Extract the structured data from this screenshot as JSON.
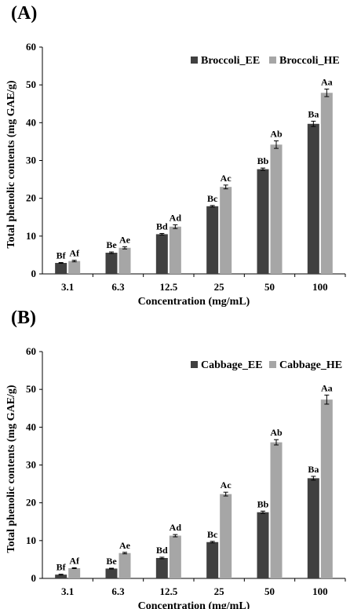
{
  "chart_data": [
    {
      "type": "bar",
      "panel_label": "(A)",
      "categories": [
        "3.1",
        "6.3",
        "12.5",
        "25",
        "50",
        "100"
      ],
      "series": [
        {
          "name": "Broccoli_EE",
          "color": "#404040",
          "values": [
            2.9,
            5.6,
            10.5,
            17.9,
            27.7,
            39.7
          ],
          "errors": [
            0.1,
            0.2,
            0.2,
            0.2,
            0.3,
            0.7
          ],
          "labels": [
            "Bf",
            "Be",
            "Bd",
            "Bc",
            "Bb",
            "Ba"
          ]
        },
        {
          "name": "Broccoli_HE",
          "color": "#a6a6a6",
          "values": [
            3.4,
            6.9,
            12.5,
            23.0,
            34.2,
            47.9
          ],
          "errors": [
            0.2,
            0.3,
            0.5,
            0.5,
            1.0,
            1.0
          ],
          "labels": [
            "Af",
            "Ae",
            "Ad",
            "Ac",
            "Ab",
            "Aa"
          ]
        }
      ],
      "xlabel": "Concentration (mg/mL)",
      "ylabel": "Total phenolic contents (mg GAE/g)",
      "ylim": [
        0,
        60
      ],
      "yticks": [
        "0",
        "10",
        "20",
        "30",
        "40",
        "50",
        "60"
      ],
      "legend": "top-right",
      "grid": false
    },
    {
      "type": "bar",
      "panel_label": "(B)",
      "categories": [
        "3.1",
        "6.3",
        "12.5",
        "25",
        "50",
        "100"
      ],
      "series": [
        {
          "name": "Cabbage_EE",
          "color": "#404040",
          "values": [
            1.0,
            2.6,
            5.4,
            9.6,
            17.5,
            26.5
          ],
          "errors": [
            0.1,
            0.1,
            0.2,
            0.2,
            0.3,
            0.5
          ],
          "labels": [
            "Bf",
            "Be",
            "Bd",
            "Bc",
            "Bb",
            "Ba"
          ]
        },
        {
          "name": "Cabbage_HE",
          "color": "#a6a6a6",
          "values": [
            2.7,
            6.7,
            11.3,
            22.3,
            36.0,
            47.3
          ],
          "errors": [
            0.1,
            0.2,
            0.3,
            0.5,
            0.7,
            1.2
          ],
          "labels": [
            "Af",
            "Ae",
            "Ad",
            "Ac",
            "Ab",
            "Aa"
          ]
        }
      ],
      "xlabel": "Concentration (mg/mL)",
      "ylabel": "Total phenolic contents (mg GAE/g)",
      "ylim": [
        0,
        60
      ],
      "yticks": [
        "0",
        "10",
        "20",
        "30",
        "40",
        "50",
        "60"
      ],
      "legend": "top-right",
      "grid": false
    }
  ]
}
